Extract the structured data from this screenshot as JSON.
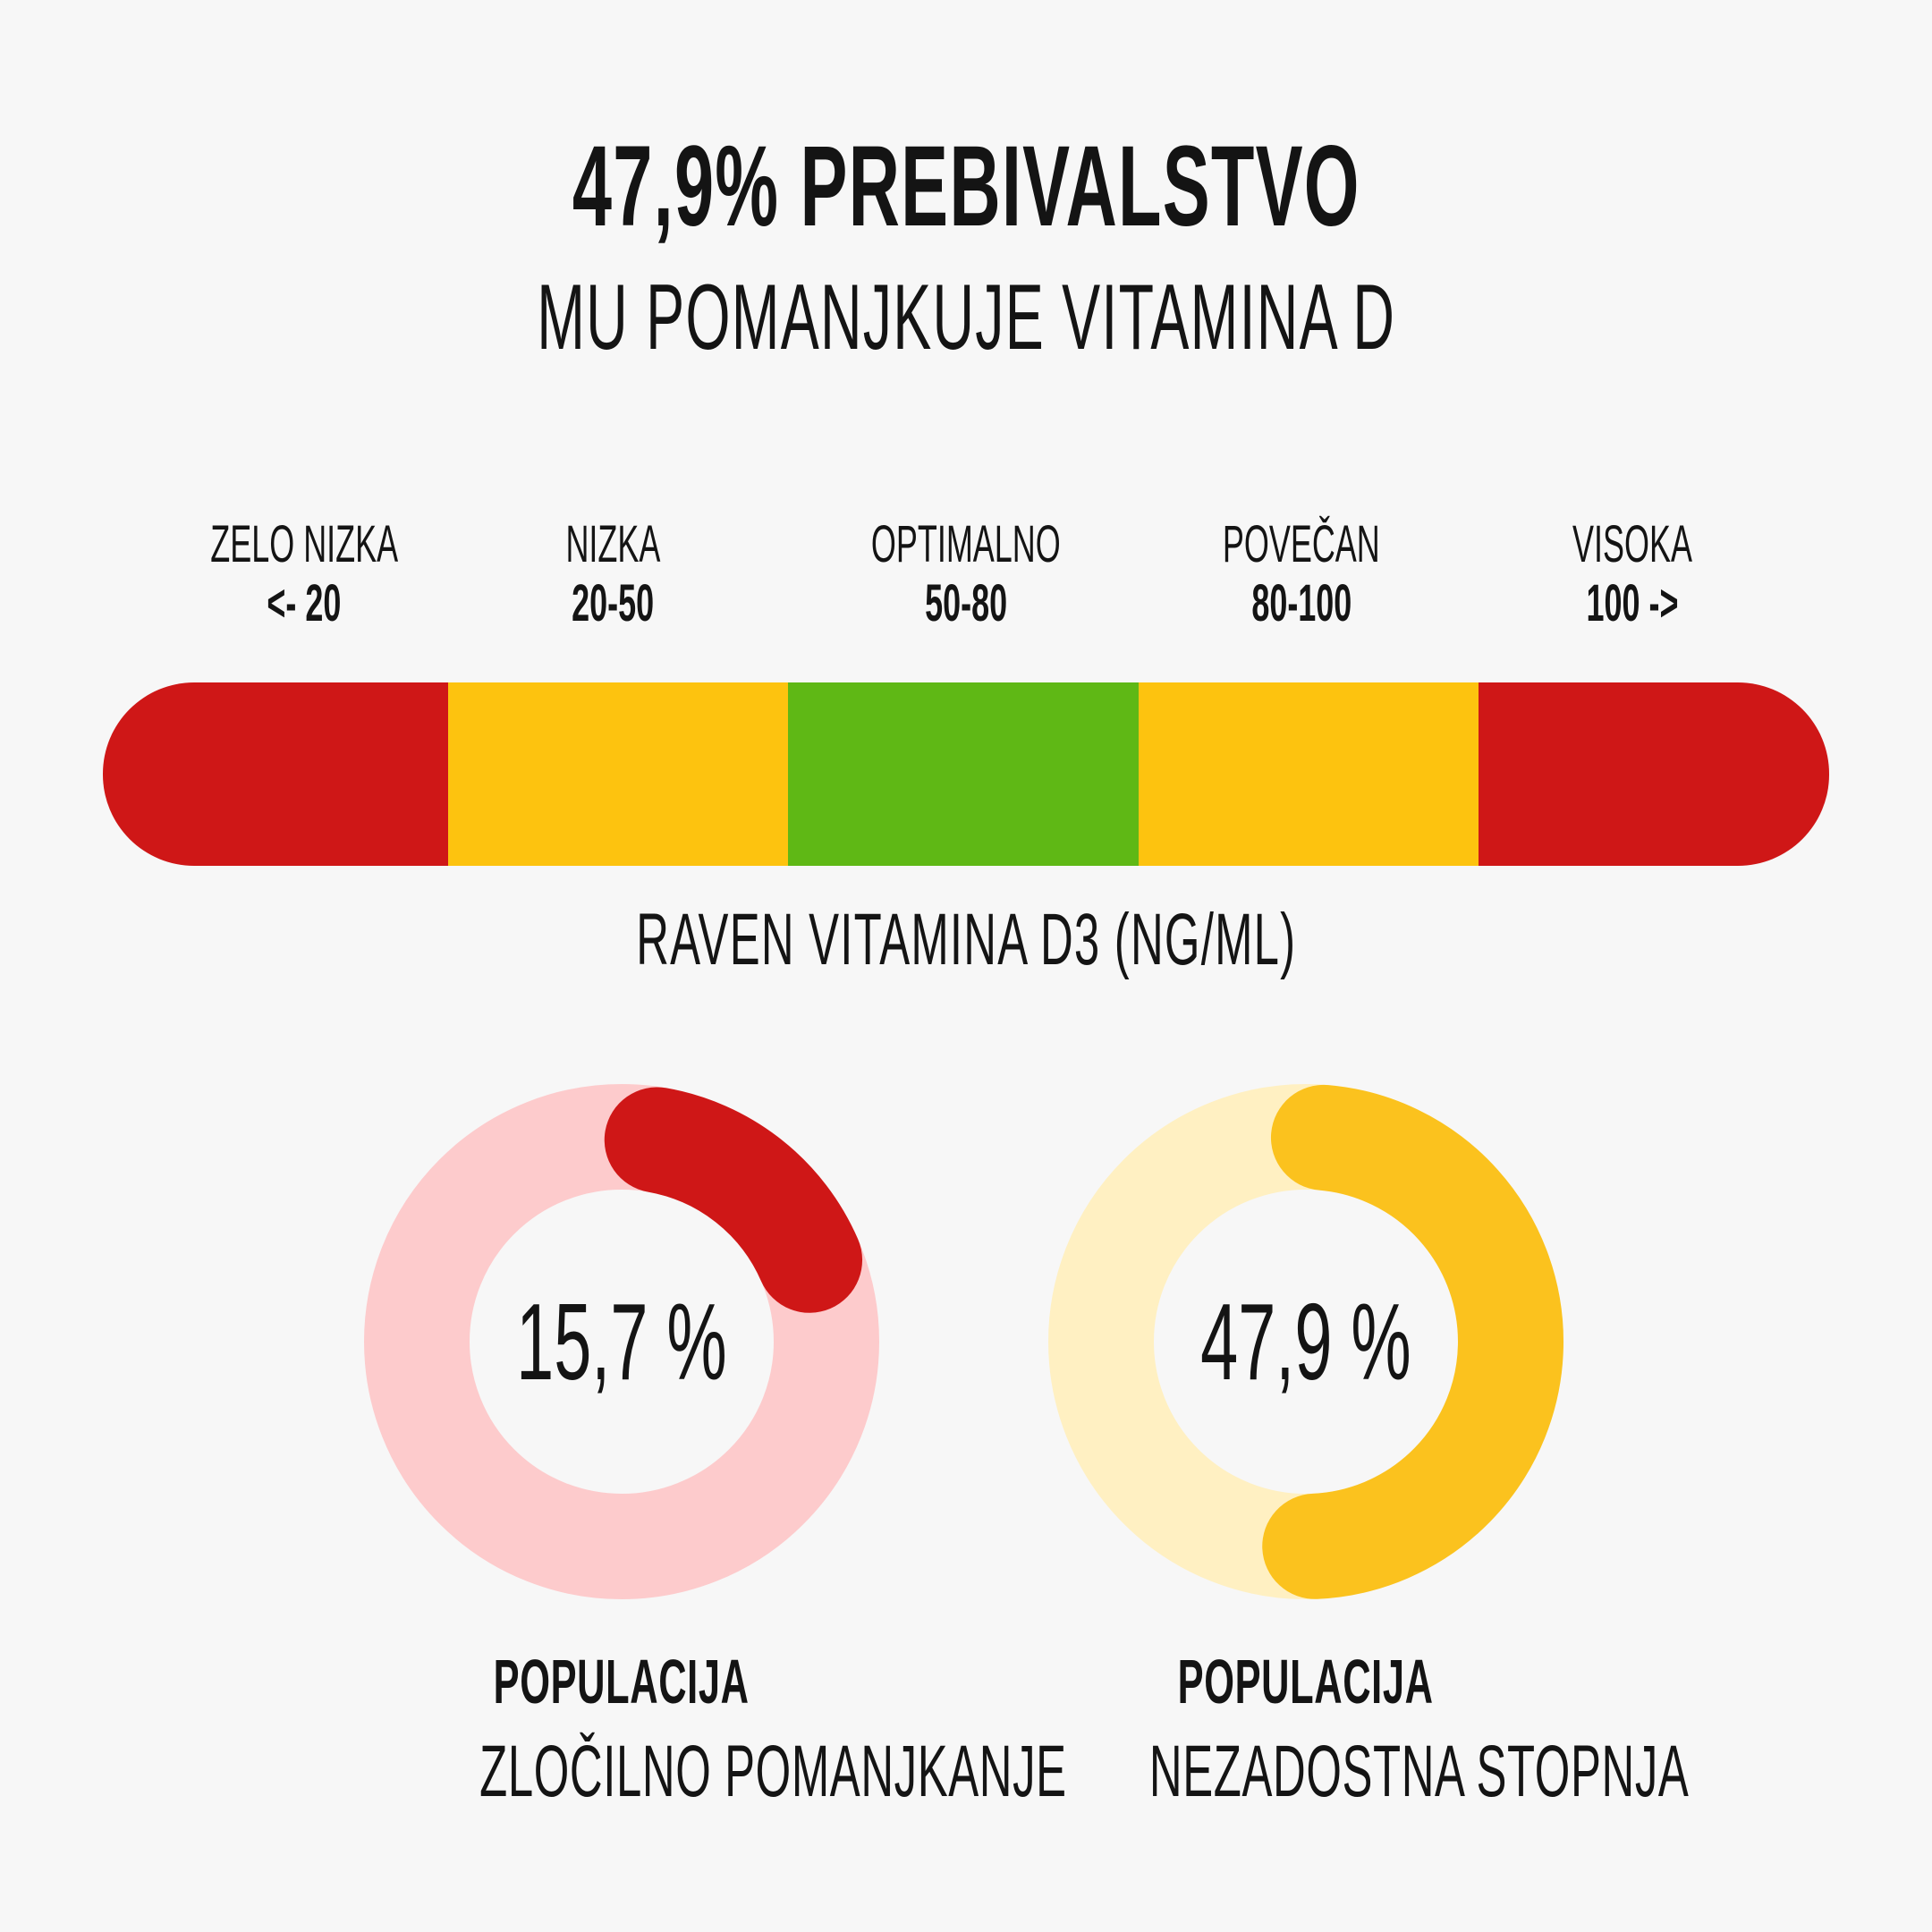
{
  "header": {
    "title": "47,9% PREBIVALSTVO",
    "subtitle": "MU POMANJKUJE VITAMINA D"
  },
  "chart_data": [
    {
      "type": "gauge",
      "xlabel": "RAVEN VITAMINA D3 (NG/ML)",
      "bands": [
        {
          "name": "ZELO NIZKA",
          "range": "<- 20",
          "color": "#cf1717"
        },
        {
          "name": "NIZKA",
          "range": "20-50",
          "color": "#fdc30f"
        },
        {
          "name": "OPTIMALNO",
          "range": "50-80",
          "color": "#5fb815"
        },
        {
          "name": "POVEČAN",
          "range": "80-100",
          "color": "#fdc30f"
        },
        {
          "name": "VISOKA",
          "range": "100 ->",
          "color": "#cf1717"
        }
      ]
    },
    {
      "type": "pie",
      "value": 15.7,
      "value_label": "15,7 %",
      "caption_bold": "POPULACIJA",
      "caption": "ZLOČILNO POMANJKANJE",
      "color": "#cf1717",
      "track_color": "#fdcbcc"
    },
    {
      "type": "pie",
      "value": 47.9,
      "value_label": "47,9 %",
      "caption_bold": "POPULACIJA",
      "caption": "NEZADOSTNA STOPNJA",
      "color": "#fbc21e",
      "track_color": "#fff0c2"
    }
  ]
}
